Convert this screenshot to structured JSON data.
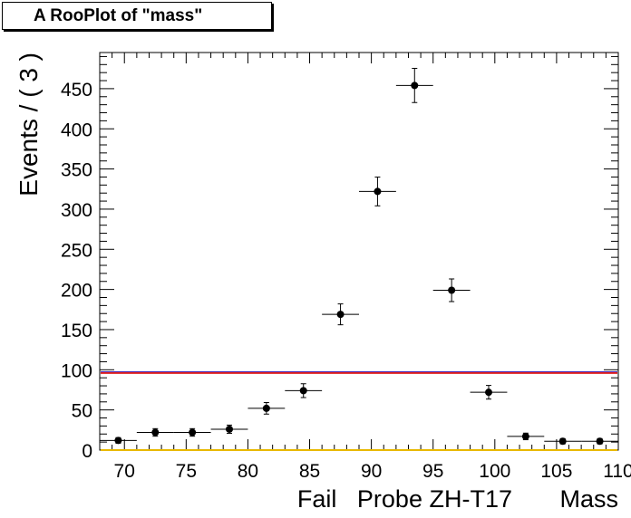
{
  "title": "A RooPlot of \"mass\"",
  "chart_data": {
    "type": "scatter",
    "title": "A RooPlot of \"mass\"",
    "xlabel": "Fail   Probe ZH-T17       Mass",
    "ylabel": "Events / ( 3 )",
    "xlim": [
      68,
      110
    ],
    "ylim": [
      0,
      495
    ],
    "x_ticks": [
      70,
      75,
      80,
      85,
      90,
      95,
      100,
      105,
      110
    ],
    "x_tick_labels": [
      "70",
      "75",
      "80",
      "85",
      "90",
      "95",
      "100",
      "105",
      "110"
    ],
    "y_ticks": [
      0,
      50,
      100,
      150,
      200,
      250,
      300,
      350,
      400,
      450
    ],
    "y_tick_labels": [
      "0",
      "50",
      "100",
      "150",
      "200",
      "250",
      "300",
      "350",
      "400",
      "450"
    ],
    "grid": false,
    "series": [
      {
        "marker": "circle",
        "color": "#000000",
        "x": [
          69.5,
          72.5,
          75.5,
          78.5,
          81.5,
          84.5,
          87.5,
          90.5,
          93.5,
          96.5,
          99.5,
          102.5,
          105.5,
          108.5
        ],
        "x_err": [
          1.5,
          1.5,
          1.5,
          1.5,
          1.5,
          1.5,
          1.5,
          1.5,
          1.5,
          1.5,
          1.5,
          1.5,
          1.5,
          1.5
        ],
        "y": [
          12,
          22,
          22,
          26,
          52,
          74,
          169,
          322,
          454,
          199,
          72,
          17,
          11,
          11
        ],
        "y_err": [
          3.5,
          4.7,
          4.7,
          5.1,
          7.2,
          8.6,
          13,
          17.9,
          21.3,
          14.1,
          8.5,
          4.1,
          3.3,
          3.3
        ]
      }
    ],
    "lines": [
      {
        "y": 97,
        "color": "#2b2bd0"
      },
      {
        "y": 96,
        "color": "#e02020"
      },
      {
        "y": 0,
        "color": "#e8b800"
      }
    ]
  }
}
